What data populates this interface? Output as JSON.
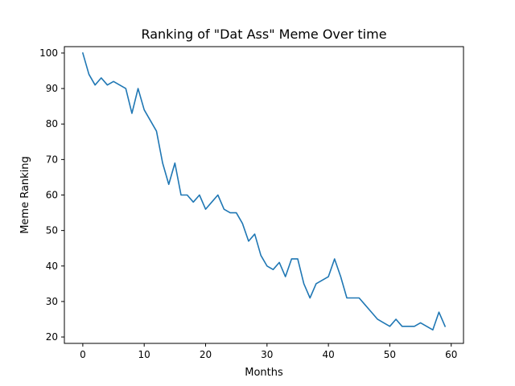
{
  "chart_data": {
    "type": "line",
    "title": "Ranking of \"Dat Ass\" Meme Over time",
    "xlabel": "Months",
    "ylabel": "Meme Ranking",
    "xlim": [
      -3,
      62
    ],
    "ylim": [
      18.2,
      101.8
    ],
    "xticks": [
      0,
      10,
      20,
      30,
      40,
      50,
      60
    ],
    "yticks": [
      20,
      30,
      40,
      50,
      60,
      70,
      80,
      90,
      100
    ],
    "grid": false,
    "series": [
      {
        "color": "#1f77b4",
        "x": [
          0,
          1,
          2,
          3,
          4,
          5,
          6,
          7,
          8,
          9,
          10,
          11,
          12,
          13,
          14,
          15,
          16,
          17,
          18,
          19,
          20,
          21,
          22,
          23,
          24,
          25,
          26,
          27,
          28,
          29,
          30,
          31,
          32,
          33,
          34,
          35,
          36,
          37,
          38,
          39,
          40,
          41,
          42,
          43,
          44,
          45,
          46,
          47,
          48,
          49,
          50,
          51,
          52,
          53,
          54,
          55,
          56,
          57,
          58,
          59
        ],
        "y": [
          100,
          94,
          91,
          93,
          91,
          92,
          91,
          90,
          83,
          90,
          84,
          81,
          78,
          69,
          63,
          69,
          60,
          60,
          58,
          60,
          56,
          58,
          60,
          56,
          55,
          55,
          52,
          47,
          49,
          43,
          40,
          39,
          41,
          37,
          42,
          42,
          35,
          31,
          35,
          36,
          37,
          42,
          37,
          31,
          31,
          31,
          29,
          27,
          25,
          24,
          23,
          25,
          23,
          23,
          23,
          24,
          23,
          22,
          27,
          23
        ]
      }
    ]
  }
}
